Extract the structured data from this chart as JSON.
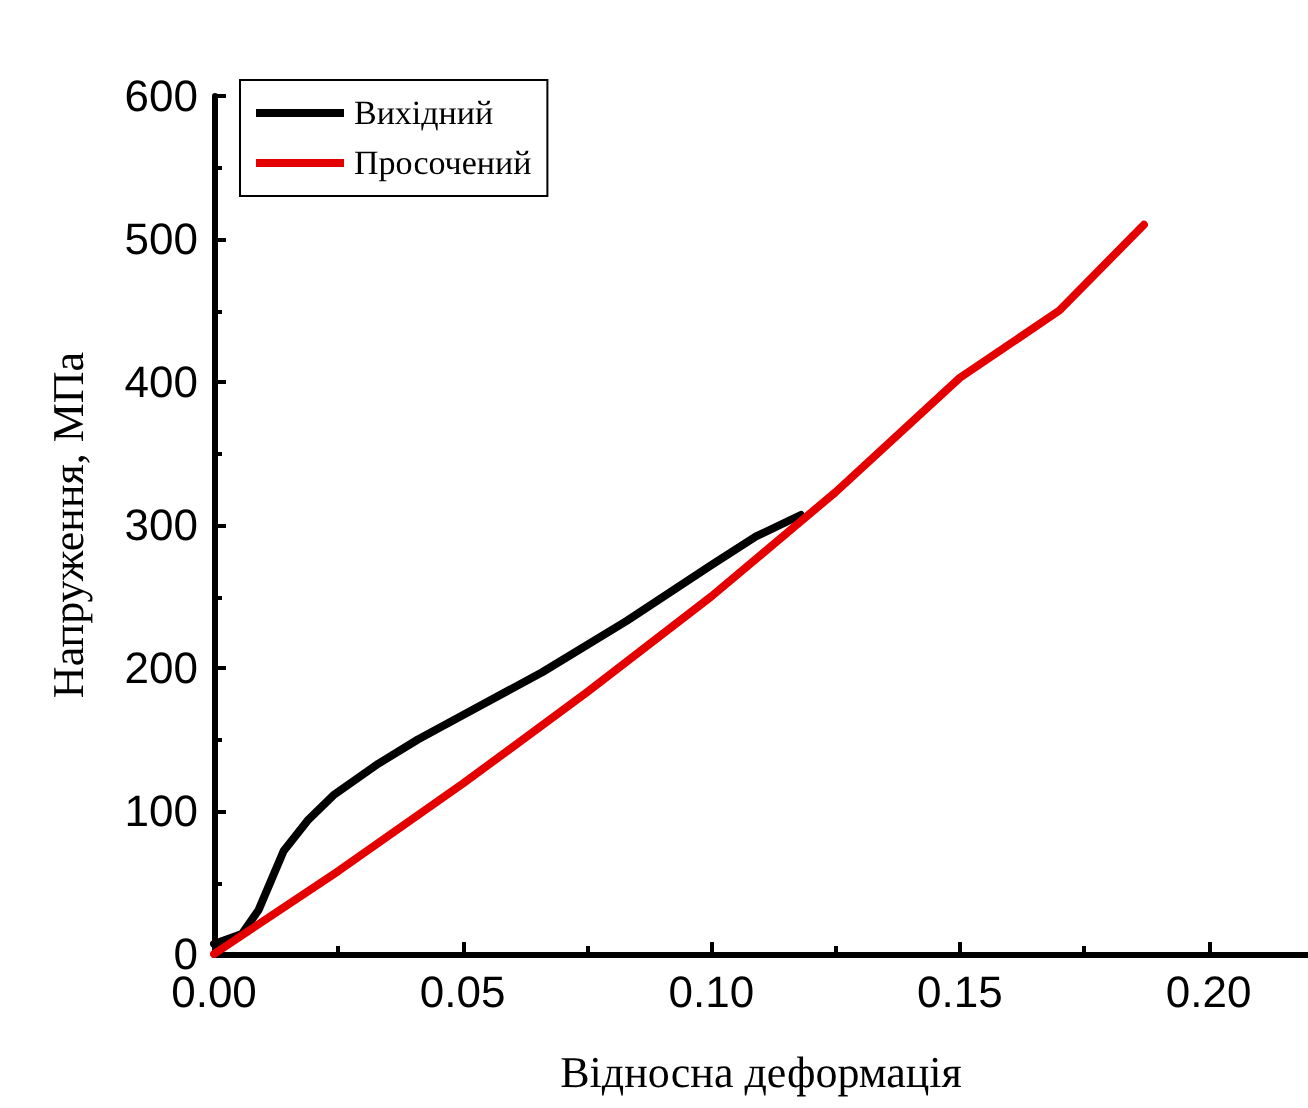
{
  "chart_data": {
    "type": "line",
    "xlabel": "Відносна деформація",
    "ylabel": "Напруження, МПа",
    "xlim": [
      0,
      0.22
    ],
    "xticks": [
      {
        "value": 0,
        "label": "0.00"
      },
      {
        "value": 0.05,
        "label": "0.05"
      },
      {
        "value": 0.1,
        "label": "0.10"
      },
      {
        "value": 0.15,
        "label": "0.15"
      },
      {
        "value": 0.2,
        "label": "0.20"
      }
    ],
    "ylim": [
      0,
      600
    ],
    "yticks": [
      0,
      100,
      200,
      300,
      400,
      500,
      600
    ],
    "grid": false,
    "legend": "top left",
    "marker": "none",
    "line_style": "solid",
    "series": [
      {
        "name": "Вихідний",
        "color": "#000000",
        "x": [
          0,
          0.0056,
          0.009,
          0.014,
          0.019,
          0.024,
          0.033,
          0.041,
          0.05,
          0.066,
          0.083,
          0.1,
          0.109,
          0.118
        ],
        "values": [
          7,
          14,
          31,
          72,
          94,
          111,
          133,
          150,
          167,
          197,
          233,
          272,
          292,
          307
        ]
      },
      {
        "name": "Просочений",
        "color": "#e50000",
        "x": [
          0,
          0.025,
          0.05,
          0.075,
          0.1,
          0.125,
          0.15,
          0.17,
          0.187
        ],
        "values": [
          0,
          58,
          119,
          183,
          250,
          323,
          403,
          450,
          510
        ]
      }
    ]
  }
}
